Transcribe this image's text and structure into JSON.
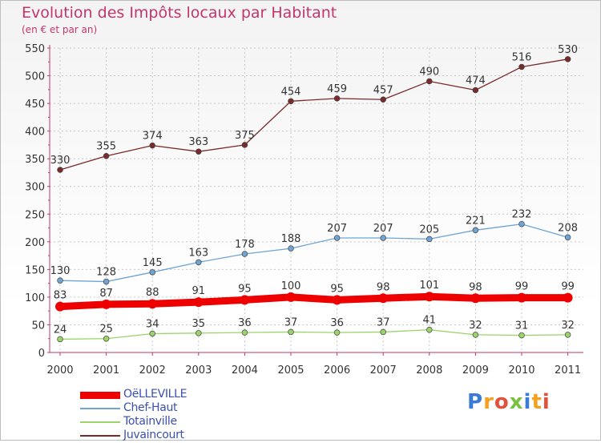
{
  "title": "Evolution des Impôts locaux par Habitant",
  "subtitle": "(en € et par an)",
  "brand": {
    "text": "Proxiti",
    "letter_colors": [
      "#3a7bd5",
      "#f4a020",
      "#e0533a",
      "#7ac142",
      "#3a7bd5",
      "#f4a020",
      "#e0533a"
    ]
  },
  "chart_data": {
    "type": "line",
    "x": [
      "2000",
      "2001",
      "2002",
      "2003",
      "2004",
      "2005",
      "2006",
      "2007",
      "2008",
      "2009",
      "2010",
      "2011"
    ],
    "ylim": [
      0,
      550
    ],
    "yticks": [
      "0",
      "50",
      "100",
      "150",
      "200",
      "250",
      "300",
      "350",
      "400",
      "450",
      "500",
      "550"
    ],
    "grid": true,
    "legend_position": "bottom-left",
    "series": [
      {
        "name": "OëLLEVILLE",
        "color": "#ee0000",
        "emphasis": true,
        "values": [
          83,
          87,
          88,
          91,
          95,
          100,
          95,
          98,
          101,
          98,
          99,
          99
        ],
        "labels": [
          "83",
          "87",
          "88",
          "91",
          "95",
          "100",
          "95",
          "98",
          "101",
          "98",
          "99",
          "99"
        ]
      },
      {
        "name": "Chef-Haut",
        "color": "#6fa4d4",
        "emphasis": false,
        "values": [
          130,
          128,
          145,
          163,
          178,
          188,
          207,
          207,
          205,
          221,
          232,
          208
        ],
        "labels": [
          "130",
          "128",
          "145",
          "163",
          "178",
          "188",
          "207",
          "207",
          "205",
          "221",
          "232",
          "208"
        ]
      },
      {
        "name": "Totainville",
        "color": "#9bd46a",
        "emphasis": false,
        "values": [
          24,
          25,
          34,
          35,
          36,
          37,
          36,
          37,
          41,
          32,
          31,
          32
        ],
        "labels": [
          "24",
          "25",
          "34",
          "35",
          "36",
          "37",
          "36",
          "37",
          "41",
          "32",
          "31",
          "32"
        ]
      },
      {
        "name": "Juvaincourt",
        "color": "#7a2a2a",
        "emphasis": false,
        "values": [
          330,
          355,
          374,
          363,
          375,
          454,
          459,
          457,
          490,
          474,
          516,
          530
        ],
        "labels": [
          "330",
          "355",
          "374",
          "363",
          "375",
          "454",
          "459",
          "457",
          "490",
          "474",
          "516",
          "530"
        ]
      }
    ]
  }
}
